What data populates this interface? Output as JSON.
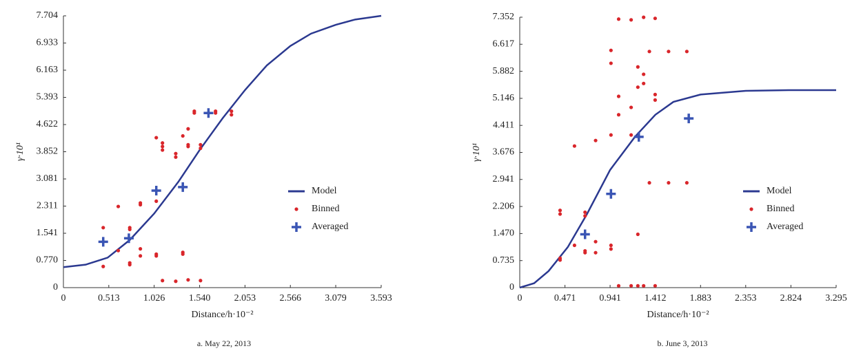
{
  "chart_data": [
    {
      "type": "scatter",
      "caption": "a. May 22, 2013",
      "xlabel": "Distance/h·10⁻²",
      "ylabel": "γ·10¹",
      "xlim": [
        0,
        3.593
      ],
      "ylim": [
        0,
        7.704
      ],
      "xticks": [
        0,
        0.513,
        1.026,
        {
          "value": 1.54,
          "label": "1.540"
        },
        2.053,
        2.566,
        3.079,
        3.593
      ],
      "yticks": [
        0,
        {
          "value": 0.77,
          "label": "0.770"
        },
        1.541,
        2.311,
        3.081,
        3.852,
        4.622,
        5.393,
        6.163,
        6.933,
        7.704
      ],
      "legend": "right",
      "series": [
        {
          "name": "Model",
          "mode": "line",
          "color": "#2b3990",
          "x": [
            0,
            0.25,
            0.5,
            0.75,
            1.026,
            1.3,
            1.54,
            1.8,
            2.053,
            2.3,
            2.566,
            2.8,
            3.079,
            3.3,
            3.593
          ],
          "values": [
            0.58,
            0.65,
            0.85,
            1.35,
            2.1,
            3.0,
            3.9,
            4.8,
            5.6,
            6.3,
            6.85,
            7.2,
            7.45,
            7.6,
            7.704
          ]
        },
        {
          "name": "Binned",
          "mode": "dot",
          "color": "#d9262b",
          "x": [
            0.45,
            0.45,
            0.62,
            0.62,
            0.75,
            0.75,
            0.75,
            0.75,
            0.87,
            0.87,
            0.87,
            0.87,
            1.05,
            1.05,
            1.05,
            1.05,
            1.12,
            1.12,
            1.12,
            1.12,
            1.27,
            1.27,
            1.27,
            1.35,
            1.35,
            1.35,
            1.41,
            1.41,
            1.41,
            1.41,
            1.48,
            1.48,
            1.55,
            1.55,
            1.55,
            1.72,
            1.72,
            1.9,
            1.9
          ],
          "values": [
            1.7,
            0.6,
            2.3,
            1.05,
            1.7,
            1.65,
            0.7,
            0.65,
            2.4,
            2.35,
            1.1,
            0.9,
            4.25,
            2.45,
            0.95,
            0.9,
            4.1,
            4.0,
            3.9,
            0.2,
            3.8,
            3.7,
            0.18,
            4.3,
            1.0,
            0.95,
            4.5,
            4.05,
            4.0,
            0.22,
            5.0,
            4.95,
            4.05,
            3.95,
            0.2,
            5.0,
            4.95,
            5.0,
            4.9
          ]
        },
        {
          "name": "Averaged",
          "mode": "plus",
          "color": "#3a55b4",
          "x": [
            0.45,
            0.74,
            1.05,
            1.35,
            1.64
          ],
          "values": [
            1.3,
            1.4,
            2.75,
            2.85,
            4.95
          ]
        }
      ]
    },
    {
      "type": "scatter",
      "caption": "b. June 3, 2013",
      "xlabel": "Distance/h·10⁻²",
      "ylabel": "γ·10¹",
      "xlim": [
        0,
        3.295
      ],
      "ylim": [
        0,
        7.352
      ],
      "xticks": [
        0,
        0.471,
        0.941,
        1.412,
        1.883,
        2.353,
        2.824,
        3.295
      ],
      "yticks": [
        0,
        0.735,
        {
          "value": 1.47,
          "label": "1.470"
        },
        2.206,
        2.941,
        3.676,
        4.411,
        5.146,
        5.882,
        6.617,
        7.352
      ],
      "legend": "right",
      "series": [
        {
          "name": "Model",
          "mode": "line",
          "color": "#2b3990",
          "x": [
            0,
            0.15,
            0.3,
            0.5,
            0.7,
            0.941,
            1.2,
            1.412,
            1.6,
            1.883,
            2.353,
            2.824,
            3.295
          ],
          "values": [
            0,
            0.12,
            0.45,
            1.1,
            2.0,
            3.2,
            4.1,
            4.7,
            5.05,
            5.25,
            5.35,
            5.37,
            5.37
          ]
        },
        {
          "name": "Binned",
          "mode": "dot",
          "color": "#d9262b",
          "x": [
            0.42,
            0.42,
            0.42,
            0.42,
            0.57,
            0.57,
            0.68,
            0.68,
            0.68,
            0.68,
            0.79,
            0.79,
            0.79,
            0.95,
            0.95,
            0.95,
            0.95,
            0.95,
            1.03,
            1.03,
            1.03,
            1.03,
            1.16,
            1.16,
            1.16,
            1.16,
            1.23,
            1.23,
            1.23,
            1.23,
            1.29,
            1.29,
            1.29,
            1.29,
            1.35,
            1.35,
            1.41,
            1.41,
            1.41,
            1.41,
            1.55,
            1.55,
            1.74,
            1.74
          ],
          "values": [
            0.8,
            0.75,
            2.1,
            2.0,
            3.85,
            1.15,
            2.05,
            1.95,
            1.0,
            0.95,
            4.0,
            1.25,
            0.95,
            6.45,
            6.1,
            4.15,
            1.15,
            1.05,
            7.3,
            5.2,
            4.7,
            0.05,
            7.28,
            4.9,
            4.15,
            0.05,
            6.0,
            5.45,
            1.45,
            0.05,
            7.35,
            5.8,
            5.55,
            0.05,
            6.42,
            2.85,
            7.32,
            5.25,
            5.1,
            0.05,
            6.42,
            2.85,
            6.42,
            2.85
          ]
        },
        {
          "name": "Averaged",
          "mode": "plus",
          "color": "#3a55b4",
          "x": [
            0.68,
            0.95,
            1.24,
            1.76
          ],
          "values": [
            1.45,
            2.55,
            4.1,
            4.6
          ]
        }
      ]
    }
  ]
}
